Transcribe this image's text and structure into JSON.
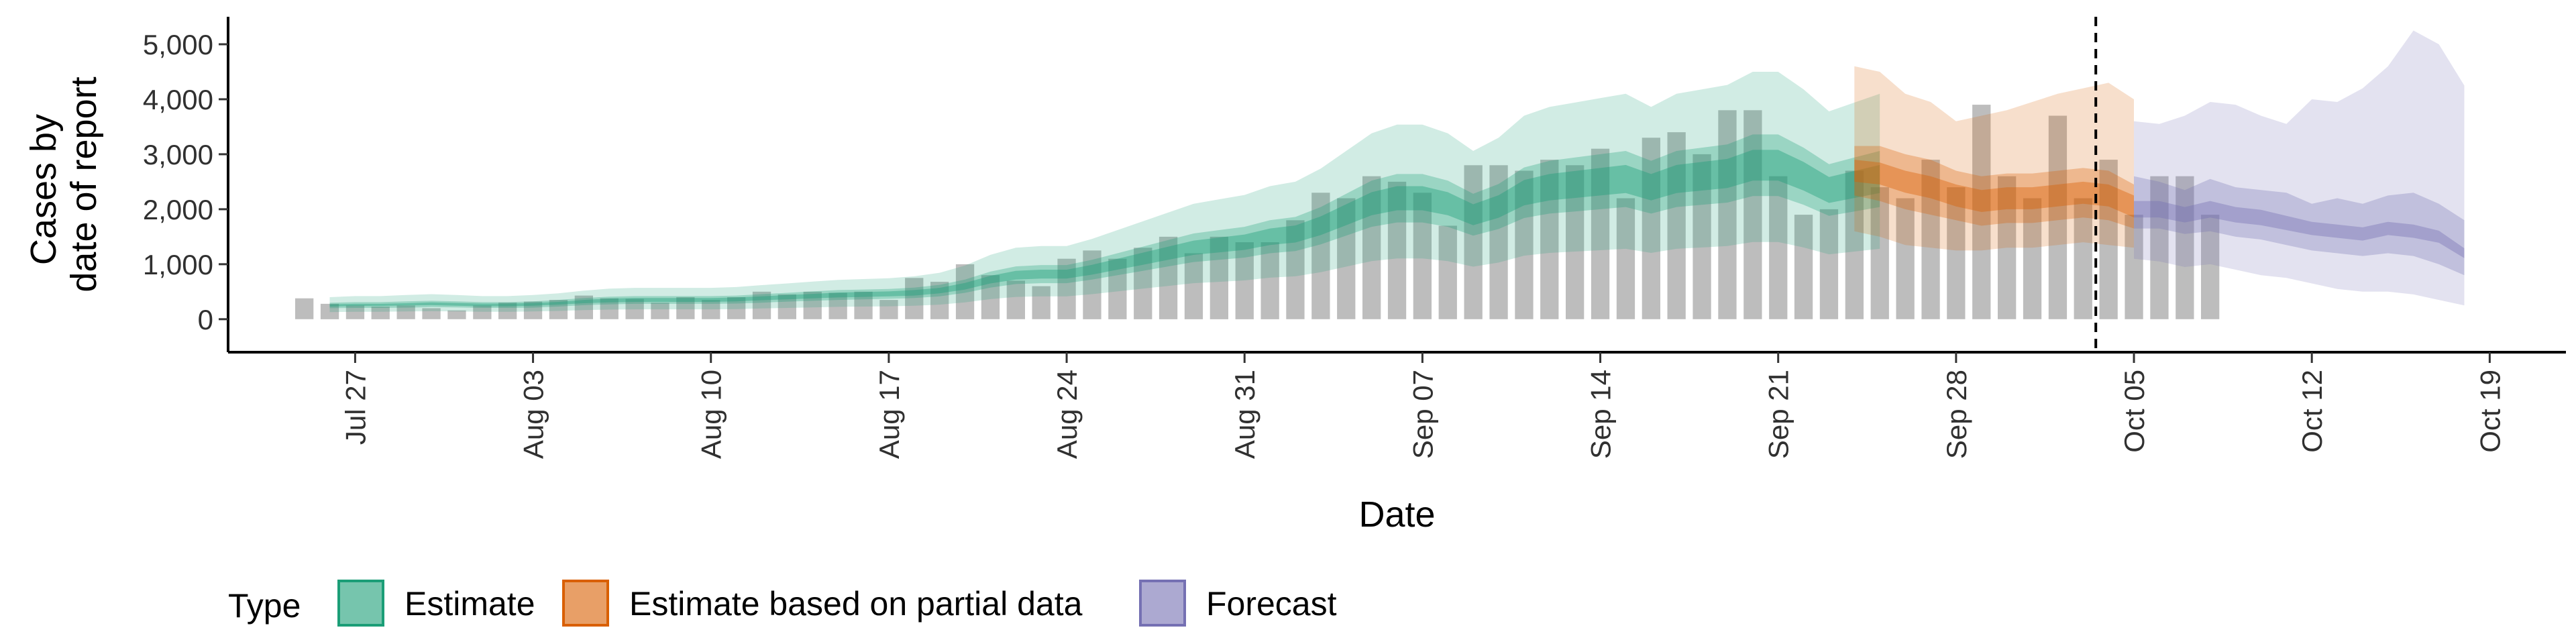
{
  "chart_data": {
    "type": "area",
    "xlabel": "Date",
    "ylabel_lines": [
      "Cases by",
      "date of report"
    ],
    "x_range": [
      "2020-07-22",
      "2020-10-22"
    ],
    "ylim": [
      -600,
      5500
    ],
    "y_ticks": [
      0,
      1000,
      2000,
      3000,
      4000,
      5000
    ],
    "y_tick_labels": [
      "0",
      "1,000",
      "2,000",
      "3,000",
      "4,000",
      "5,000"
    ],
    "x_ticks": [
      "2020-07-27",
      "2020-08-03",
      "2020-08-10",
      "2020-08-17",
      "2020-08-24",
      "2020-08-31",
      "2020-09-07",
      "2020-09-14",
      "2020-09-21",
      "2020-09-28",
      "2020-10-05",
      "2020-10-12",
      "2020-10-19"
    ],
    "x_tick_labels": [
      "Jul 27",
      "Aug 03",
      "Aug 10",
      "Aug 17",
      "Aug 24",
      "Aug 31",
      "Sep 07",
      "Sep 14",
      "Sep 21",
      "Sep 28",
      "Oct 05",
      "Oct 12",
      "Oct 19"
    ],
    "forecast_start": "2020-10-04",
    "grid": false,
    "legend_position": "bottom",
    "legend_title": "Type",
    "colors": {
      "Estimate": "#1b9e77",
      "Estimate based on partial data": "#d95f02",
      "Forecast": "#7570b3",
      "reported": "#bdbdbd"
    },
    "reported_cases": {
      "start": "2020-07-25",
      "values": [
        380,
        280,
        250,
        230,
        250,
        200,
        160,
        250,
        300,
        320,
        350,
        430,
        380,
        370,
        300,
        400,
        350,
        400,
        500,
        450,
        500,
        480,
        500,
        350,
        750,
        680,
        1000,
        800,
        700,
        600,
        1100,
        1250,
        1100,
        1300,
        1500,
        1200,
        1500,
        1400,
        1400,
        1800,
        2300,
        2200,
        2600,
        2500,
        2300,
        1700,
        2800,
        2800,
        2700,
        2900,
        2800,
        3100,
        2200,
        3300,
        3400,
        3000,
        3800,
        3800,
        2600,
        1900,
        2000,
        2700,
        2400,
        2200,
        2900,
        2400,
        3900,
        2600,
        2200,
        3700,
        2200,
        2900,
        1900,
        2600,
        2600,
        1900
      ]
    },
    "series": [
      {
        "name": "Estimate",
        "start": "2020-07-26",
        "median": [
          250,
          260,
          260,
          270,
          280,
          270,
          260,
          260,
          270,
          290,
          320,
          340,
          350,
          350,
          350,
          350,
          360,
          380,
          400,
          420,
          440,
          450,
          460,
          480,
          520,
          600,
          720,
          800,
          820,
          820,
          900,
          1000,
          1100,
          1200,
          1300,
          1350,
          1400,
          1500,
          1550,
          1700,
          1900,
          2100,
          2200,
          2200,
          2100,
          1900,
          2050,
          2300,
          2400,
          2450,
          2500,
          2550,
          2400,
          2550,
          2600,
          2650,
          2800,
          2800,
          2600,
          2350,
          2450,
          2550
        ],
        "lo20": [
          230,
          240,
          240,
          250,
          255,
          245,
          235,
          235,
          245,
          265,
          290,
          305,
          315,
          315,
          315,
          315,
          325,
          345,
          360,
          380,
          395,
          405,
          415,
          430,
          470,
          540,
          650,
          720,
          740,
          740,
          810,
          900,
          990,
          1080,
          1170,
          1215,
          1260,
          1350,
          1395,
          1530,
          1710,
          1890,
          1980,
          1980,
          1890,
          1710,
          1845,
          2070,
          2160,
          2205,
          2250,
          2295,
          2160,
          2295,
          2340,
          2385,
          2520,
          2520,
          2340,
          2115,
          2205,
          2295
        ],
        "hi20": [
          270,
          280,
          280,
          290,
          305,
          295,
          285,
          285,
          295,
          315,
          350,
          375,
          385,
          385,
          385,
          385,
          395,
          415,
          440,
          460,
          485,
          495,
          505,
          530,
          570,
          660,
          790,
          880,
          900,
          900,
          990,
          1100,
          1210,
          1320,
          1430,
          1485,
          1540,
          1650,
          1705,
          1870,
          2090,
          2310,
          2420,
          2420,
          2310,
          2090,
          2255,
          2530,
          2640,
          2695,
          2750,
          2805,
          2640,
          2805,
          2860,
          2915,
          3080,
          3080,
          2860,
          2585,
          2695,
          2805
        ],
        "lo50": [
          200,
          205,
          205,
          210,
          220,
          215,
          205,
          205,
          210,
          230,
          255,
          270,
          280,
          280,
          280,
          280,
          285,
          300,
          320,
          335,
          350,
          360,
          370,
          385,
          415,
          480,
          575,
          640,
          655,
          655,
          720,
          800,
          880,
          960,
          1040,
          1080,
          1120,
          1200,
          1240,
          1360,
          1520,
          1680,
          1760,
          1760,
          1680,
          1520,
          1640,
          1840,
          1920,
          1960,
          2000,
          2040,
          1920,
          2040,
          2080,
          2120,
          2240,
          2240,
          2080,
          1880,
          1960,
          2040
        ],
        "hi50": [
          300,
          310,
          310,
          325,
          335,
          325,
          310,
          310,
          325,
          350,
          385,
          410,
          420,
          420,
          420,
          420,
          430,
          455,
          480,
          505,
          530,
          540,
          550,
          575,
          625,
          720,
          865,
          960,
          985,
          985,
          1080,
          1200,
          1320,
          1440,
          1560,
          1620,
          1680,
          1800,
          1860,
          2040,
          2280,
          2520,
          2640,
          2640,
          2520,
          2280,
          2460,
          2760,
          2880,
          2940,
          3000,
          3060,
          2880,
          3060,
          3120,
          3180,
          3360,
          3360,
          3120,
          2820,
          2940,
          3060
        ],
        "lo90": [
          130,
          135,
          135,
          140,
          145,
          140,
          135,
          135,
          140,
          150,
          165,
          175,
          180,
          180,
          180,
          180,
          185,
          195,
          205,
          215,
          225,
          230,
          235,
          245,
          265,
          305,
          365,
          405,
          415,
          415,
          455,
          505,
          555,
          605,
          655,
          680,
          705,
          755,
          780,
          855,
          955,
          1055,
          1105,
          1105,
          1055,
          955,
          1030,
          1155,
          1205,
          1230,
          1255,
          1280,
          1205,
          1280,
          1305,
          1330,
          1405,
          1405,
          1305,
          1180,
          1230,
          1280
        ],
        "hi90": [
          400,
          420,
          420,
          440,
          455,
          440,
          420,
          420,
          440,
          470,
          520,
          555,
          570,
          570,
          570,
          570,
          585,
          620,
          650,
          685,
          715,
          730,
          745,
          780,
          845,
          975,
          1170,
          1300,
          1330,
          1330,
          1460,
          1620,
          1780,
          1940,
          2100,
          2180,
          2260,
          2420,
          2500,
          2740,
          3060,
          3380,
          3540,
          3540,
          3380,
          3060,
          3300,
          3700,
          3860,
          3940,
          4020,
          4100,
          3860,
          4100,
          4180,
          4260,
          4500,
          4500,
          4180,
          3780,
          3940,
          4100
        ]
      },
      {
        "name": "Estimate based on partial data",
        "start": "2020-09-24",
        "median": [
          2700,
          2650,
          2500,
          2400,
          2250,
          2150,
          2200,
          2200,
          2250,
          2300,
          2250,
          2050
        ],
        "lo20": [
          2500,
          2450,
          2300,
          2200,
          2050,
          1950,
          2000,
          2000,
          2050,
          2100,
          2050,
          1850
        ],
        "hi20": [
          2900,
          2850,
          2700,
          2600,
          2450,
          2350,
          2400,
          2400,
          2450,
          2500,
          2450,
          2250
        ],
        "lo50": [
          2250,
          2150,
          2000,
          1900,
          1800,
          1700,
          1750,
          1750,
          1800,
          1850,
          1800,
          1650
        ],
        "hi50": [
          3150,
          3150,
          3000,
          2900,
          2700,
          2600,
          2650,
          2650,
          2700,
          2750,
          2700,
          2450
        ],
        "lo90": [
          1600,
          1500,
          1350,
          1300,
          1250,
          1250,
          1300,
          1300,
          1350,
          1400,
          1350,
          1300
        ],
        "hi90": [
          4600,
          4500,
          4100,
          3950,
          3600,
          3700,
          3800,
          3950,
          4100,
          4200,
          4300,
          4000
        ]
      },
      {
        "name": "Forecast",
        "start": "2020-10-05",
        "median": [
          2000,
          2000,
          1900,
          2000,
          1900,
          1850,
          1750,
          1650,
          1600,
          1550,
          1650,
          1600,
          1500,
          1200
        ],
        "lo20": [
          1850,
          1850,
          1760,
          1850,
          1760,
          1710,
          1620,
          1530,
          1480,
          1430,
          1530,
          1480,
          1390,
          1110
        ],
        "hi20": [
          2150,
          2150,
          2040,
          2150,
          2040,
          1990,
          1880,
          1770,
          1720,
          1670,
          1770,
          1720,
          1610,
          1290
        ],
        "lo50": [
          1650,
          1650,
          1550,
          1600,
          1500,
          1450,
          1350,
          1250,
          1200,
          1150,
          1200,
          1150,
          1000,
          800
        ],
        "hi50": [
          2600,
          2500,
          2350,
          2550,
          2400,
          2350,
          2300,
          2100,
          2200,
          2100,
          2250,
          2300,
          2100,
          1800
        ],
        "lo90": [
          1100,
          1050,
          950,
          1000,
          900,
          800,
          750,
          650,
          550,
          500,
          500,
          450,
          350,
          250
        ],
        "hi90": [
          3600,
          3550,
          3700,
          3950,
          3900,
          3700,
          3550,
          4000,
          3950,
          4200,
          4600,
          5250,
          5000,
          4250
        ]
      }
    ]
  }
}
